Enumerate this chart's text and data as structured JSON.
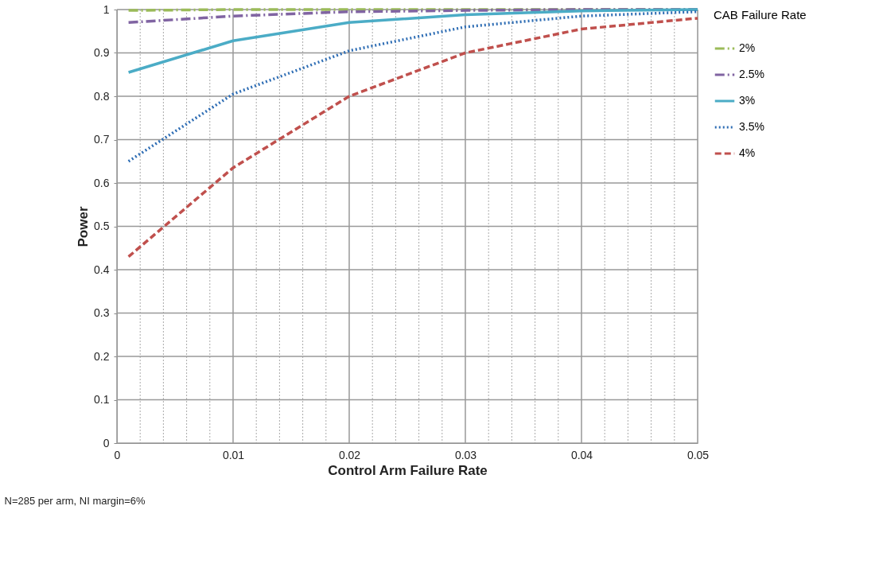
{
  "chart_data": {
    "type": "line",
    "xlabel": "Control Arm Failure Rate",
    "ylabel": "Power",
    "legend_title": "CAB Failure Rate",
    "x": [
      0.001,
      0.01,
      0.02,
      0.03,
      0.04,
      0.05
    ],
    "series": [
      {
        "name": "2%",
        "color": "#9bbb59",
        "line_style": "dashdot",
        "values": [
          0.998,
          1.0,
          1.0,
          1.0,
          1.0,
          1.0
        ]
      },
      {
        "name": "2.5%",
        "color": "#8064a2",
        "line_style": "dashdot",
        "values": [
          0.97,
          0.985,
          0.995,
          0.998,
          1.0,
          1.0
        ]
      },
      {
        "name": "3%",
        "color": "#4bacc6",
        "line_style": "solid",
        "values": [
          0.855,
          0.928,
          0.97,
          0.988,
          0.997,
          1.0
        ]
      },
      {
        "name": "3.5%",
        "color": "#2e6db4",
        "line_style": "dotted",
        "values": [
          0.65,
          0.805,
          0.905,
          0.96,
          0.985,
          0.995
        ]
      },
      {
        "name": "4%",
        "color": "#c0504d",
        "line_style": "dashed",
        "values": [
          0.43,
          0.635,
          0.8,
          0.9,
          0.955,
          0.98
        ]
      }
    ],
    "xlim": [
      0,
      0.05
    ],
    "xticks": [
      0,
      {
        "value": 0.002,
        "label": null
      },
      {
        "value": 0.004,
        "label": null
      },
      {
        "value": 0.006,
        "label": null
      },
      {
        "value": 0.008,
        "label": null
      },
      0.01,
      {
        "value": 0.012,
        "label": null
      },
      {
        "value": 0.014,
        "label": null
      },
      {
        "value": 0.016,
        "label": null
      },
      {
        "value": 0.018,
        "label": null
      },
      0.02,
      {
        "value": 0.022,
        "label": null
      },
      {
        "value": 0.024,
        "label": null
      },
      {
        "value": 0.026,
        "label": null
      },
      {
        "value": 0.028,
        "label": null
      },
      0.03,
      {
        "value": 0.032,
        "label": null
      },
      {
        "value": 0.034,
        "label": null
      },
      {
        "value": 0.036,
        "label": null
      },
      {
        "value": 0.038,
        "label": null
      },
      0.04,
      {
        "value": 0.042,
        "label": null
      },
      {
        "value": 0.044,
        "label": null
      },
      {
        "value": 0.046,
        "label": null
      },
      {
        "value": 0.048,
        "label": null
      },
      0.05
    ],
    "ylim": [
      0,
      1
    ],
    "yticks": [
      0,
      0.1,
      0.2,
      0.3,
      0.4,
      0.5,
      0.6,
      0.7,
      0.8,
      0.9,
      1
    ],
    "grid": true,
    "legend": "right",
    "marker": "none",
    "annotations": [
      "N=285 per arm, NI margin=6%"
    ]
  }
}
